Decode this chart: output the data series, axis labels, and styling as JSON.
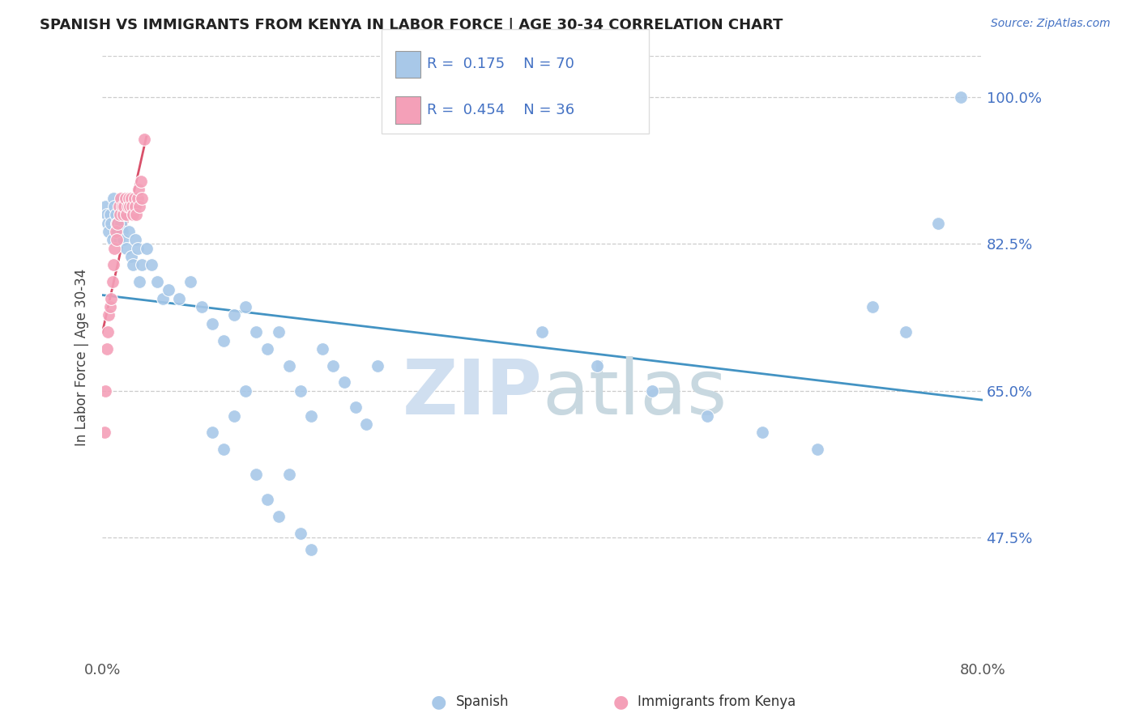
{
  "title": "SPANISH VS IMMIGRANTS FROM KENYA IN LABOR FORCE | AGE 30-34 CORRELATION CHART",
  "source_text": "Source: ZipAtlas.com",
  "ylabel": "In Labor Force | Age 30-34",
  "xlim": [
    0.0,
    0.8
  ],
  "ylim": [
    0.33,
    1.05
  ],
  "ytick_vals": [
    0.475,
    0.65,
    0.825,
    1.0
  ],
  "ytick_labels": [
    "47.5%",
    "65.0%",
    "82.5%",
    "100.0%"
  ],
  "legend_R1": "0.175",
  "legend_N1": "70",
  "legend_R2": "0.454",
  "legend_N2": "36",
  "blue_color": "#a8c8e8",
  "pink_color": "#f4a0b8",
  "blue_line_color": "#4393c3",
  "pink_line_color": "#d9506a",
  "watermark_color": "#d0dff0",
  "blue_scatter_x": [
    0.003,
    0.004,
    0.005,
    0.006,
    0.007,
    0.008,
    0.009,
    0.01,
    0.011,
    0.012,
    0.013,
    0.014,
    0.015,
    0.016,
    0.017,
    0.018,
    0.019,
    0.02,
    0.022,
    0.024,
    0.026,
    0.028,
    0.03,
    0.032,
    0.034,
    0.036,
    0.04,
    0.045,
    0.05,
    0.055,
    0.06,
    0.07,
    0.08,
    0.09,
    0.1,
    0.11,
    0.12,
    0.13,
    0.14,
    0.15,
    0.16,
    0.17,
    0.18,
    0.19,
    0.2,
    0.21,
    0.22,
    0.23,
    0.24,
    0.25,
    0.1,
    0.11,
    0.12,
    0.13,
    0.14,
    0.15,
    0.16,
    0.17,
    0.18,
    0.19,
    0.4,
    0.45,
    0.5,
    0.55,
    0.6,
    0.65,
    0.7,
    0.73,
    0.76,
    0.78
  ],
  "blue_scatter_y": [
    0.87,
    0.86,
    0.85,
    0.84,
    0.86,
    0.85,
    0.83,
    0.88,
    0.87,
    0.86,
    0.85,
    0.84,
    0.83,
    0.87,
    0.85,
    0.84,
    0.83,
    0.86,
    0.82,
    0.84,
    0.81,
    0.8,
    0.83,
    0.82,
    0.78,
    0.8,
    0.82,
    0.8,
    0.78,
    0.76,
    0.77,
    0.76,
    0.78,
    0.75,
    0.73,
    0.71,
    0.74,
    0.75,
    0.72,
    0.7,
    0.72,
    0.68,
    0.65,
    0.62,
    0.7,
    0.68,
    0.66,
    0.63,
    0.61,
    0.68,
    0.6,
    0.58,
    0.62,
    0.65,
    0.55,
    0.52,
    0.5,
    0.55,
    0.48,
    0.46,
    0.72,
    0.68,
    0.65,
    0.62,
    0.6,
    0.58,
    0.75,
    0.72,
    0.85,
    1.0
  ],
  "pink_scatter_x": [
    0.002,
    0.003,
    0.004,
    0.005,
    0.006,
    0.007,
    0.008,
    0.009,
    0.01,
    0.011,
    0.012,
    0.013,
    0.014,
    0.015,
    0.016,
    0.017,
    0.018,
    0.019,
    0.02,
    0.021,
    0.022,
    0.023,
    0.024,
    0.025,
    0.026,
    0.027,
    0.028,
    0.029,
    0.03,
    0.031,
    0.032,
    0.033,
    0.034,
    0.035,
    0.036,
    0.038
  ],
  "pink_scatter_y": [
    0.6,
    0.65,
    0.7,
    0.72,
    0.74,
    0.75,
    0.76,
    0.78,
    0.8,
    0.82,
    0.84,
    0.83,
    0.85,
    0.87,
    0.86,
    0.88,
    0.87,
    0.86,
    0.87,
    0.88,
    0.86,
    0.87,
    0.88,
    0.87,
    0.88,
    0.87,
    0.86,
    0.88,
    0.87,
    0.86,
    0.88,
    0.89,
    0.87,
    0.9,
    0.88,
    0.95
  ]
}
